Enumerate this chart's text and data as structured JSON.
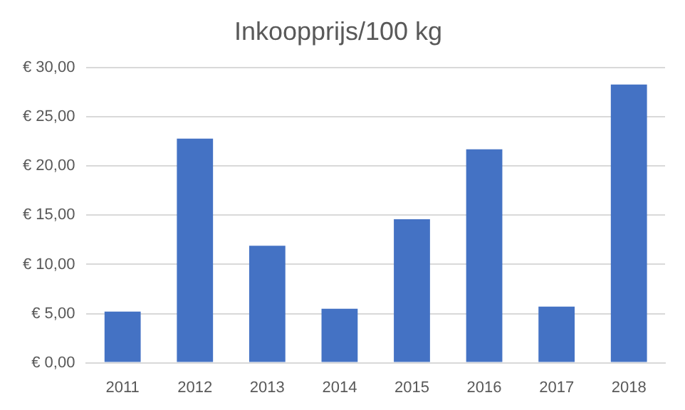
{
  "chart_data": {
    "type": "bar",
    "title": "Inkoopprijs/100 kg",
    "categories": [
      "2011",
      "2012",
      "2013",
      "2014",
      "2015",
      "2016",
      "2017",
      "2018"
    ],
    "values": [
      5.2,
      22.8,
      11.9,
      5.5,
      14.6,
      21.7,
      5.7,
      28.3
    ],
    "color": "#4472c4",
    "ylim": [
      0,
      30
    ],
    "yticks": [
      {
        "value": 0,
        "label": "€ 0,00"
      },
      {
        "value": 5,
        "label": "€ 5,00"
      },
      {
        "value": 10,
        "label": "€ 10,00"
      },
      {
        "value": 15,
        "label": "€ 15,00"
      },
      {
        "value": 20,
        "label": "€ 20,00"
      },
      {
        "value": 25,
        "label": "€ 25,00"
      },
      {
        "value": 30,
        "label": "€ 30,00"
      }
    ],
    "grid": "y",
    "legend": false
  }
}
